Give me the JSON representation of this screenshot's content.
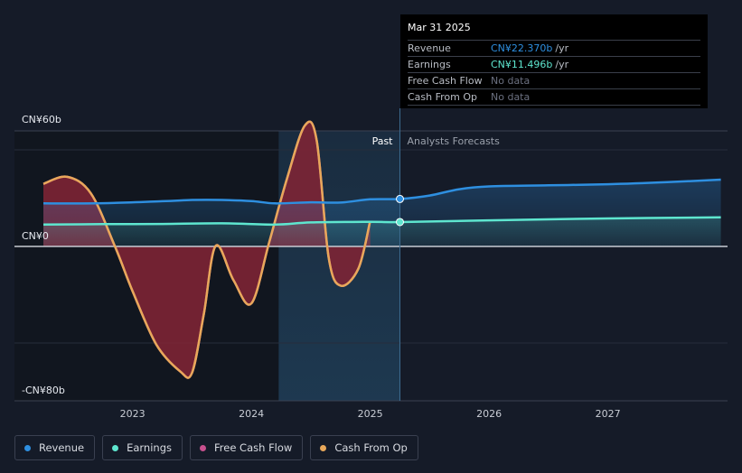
{
  "tooltip": {
    "date": "Mar 31 2025",
    "rows": [
      {
        "label": "Revenue",
        "value": "CN¥22.370b",
        "unit": "/yr",
        "color": "#2e8fe0"
      },
      {
        "label": "Earnings",
        "value": "CN¥11.496b",
        "unit": "/yr",
        "color": "#5ee6cf"
      },
      {
        "label": "Free Cash Flow",
        "value": "No data",
        "unit": ""
      },
      {
        "label": "Cash From Op",
        "value": "No data",
        "unit": ""
      }
    ]
  },
  "legend": [
    {
      "label": "Revenue",
      "color": "#2e8fe0"
    },
    {
      "label": "Earnings",
      "color": "#5ee6cf"
    },
    {
      "label": "Free Cash Flow",
      "color": "#c7508e"
    },
    {
      "label": "Cash From Op",
      "color": "#e8a85a"
    }
  ],
  "chart_data": {
    "type": "line",
    "y_tick_labels": [
      "CN¥60b",
      "CN¥0",
      "-CN¥80b"
    ],
    "x_tick_labels": [
      "2023",
      "2024",
      "2025",
      "2026",
      "2027"
    ],
    "past_label": "Past",
    "forecast_label": "Analysts Forecasts",
    "ylim": [
      -80,
      60
    ],
    "xlim": [
      2022.25,
      2027.95
    ],
    "past_end": 2025.25,
    "series": [
      {
        "name": "Revenue",
        "color": "#2e8fe0",
        "x": [
          2022.25,
          2022.75,
          2023.25,
          2023.5,
          2023.75,
          2024.0,
          2024.2,
          2024.5,
          2024.75,
          2025.0,
          2025.25,
          2025.5,
          2025.75,
          2026.0,
          2026.5,
          2027.0,
          2027.5,
          2027.95
        ],
        "y": [
          20.3,
          20.4,
          21.3,
          21.9,
          21.9,
          21.4,
          20.3,
          20.8,
          20.7,
          22.2,
          22.37,
          24.0,
          27.0,
          28.3,
          28.8,
          29.3,
          30.3,
          31.5
        ]
      },
      {
        "name": "Earnings",
        "color": "#5ee6cf",
        "x": [
          2022.25,
          2022.75,
          2023.25,
          2023.75,
          2024.2,
          2024.5,
          2025.0,
          2025.25,
          2026.0,
          2027.0,
          2027.95
        ],
        "y": [
          10.3,
          10.5,
          10.6,
          10.9,
          10.3,
          11.3,
          11.6,
          11.496,
          12.3,
          13.2,
          13.7
        ]
      },
      {
        "name": "Free Cash Flow",
        "color": "#c7508e",
        "x": [
          2022.25,
          2022.45,
          2022.65,
          2022.85,
          2023.0,
          2023.2,
          2023.4,
          2023.5,
          2023.6,
          2023.7,
          2023.85,
          2024.0,
          2024.15,
          2024.3,
          2024.45,
          2024.55,
          2024.65,
          2024.75,
          2024.9,
          2025.0
        ],
        "y": [
          29.5,
          32.8,
          25.0,
          0.3,
          -25.0,
          -55.0,
          -70.0,
          -71.0,
          -38.0,
          0.3,
          -19.0,
          -32.0,
          2.0,
          32.0,
          57.0,
          50.0,
          -6.0,
          -22.0,
          -12.5,
          12.0
        ]
      },
      {
        "name": "Cash From Op",
        "color": "#e8a85a",
        "x": [
          2022.25,
          2022.45,
          2022.65,
          2022.85,
          2023.0,
          2023.2,
          2023.4,
          2023.5,
          2023.6,
          2023.7,
          2023.85,
          2024.0,
          2024.15,
          2024.3,
          2024.45,
          2024.55,
          2024.65,
          2024.75,
          2024.9,
          2025.0
        ],
        "y": [
          29.5,
          32.8,
          25.0,
          0.3,
          -25.0,
          -55.0,
          -70.0,
          -71.0,
          -38.0,
          0.3,
          -19.0,
          -32.0,
          2.0,
          32.0,
          57.0,
          50.0,
          -6.0,
          -22.0,
          -12.5,
          12.0
        ]
      }
    ]
  }
}
